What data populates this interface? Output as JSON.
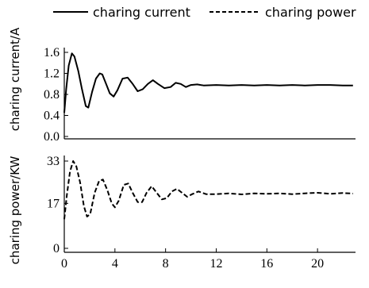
{
  "legend": {
    "current_label": "charing current",
    "power_label": "charing power"
  },
  "chart_data": [
    {
      "type": "line",
      "ylabel": "charing current/A",
      "ylim": [
        0,
        1.6
      ],
      "xlim": [
        0,
        23
      ],
      "yticks": [
        "0.0",
        "0.4",
        "0.8",
        "1.2",
        "1.6"
      ],
      "ytick_values": [
        0,
        0.4,
        0.8,
        1.2,
        1.6
      ],
      "series": [
        {
          "name": "charing current",
          "style": "solid",
          "x": [
            0,
            0.15,
            0.35,
            0.6,
            0.8,
            1.1,
            1.4,
            1.7,
            1.9,
            2.2,
            2.5,
            2.8,
            3.0,
            3.3,
            3.6,
            3.9,
            4.2,
            4.6,
            5.0,
            5.4,
            5.8,
            6.2,
            6.6,
            7.0,
            7.4,
            7.9,
            8.4,
            8.8,
            9.2,
            9.6,
            10.0,
            10.5,
            11.0,
            12,
            13,
            14,
            15,
            16,
            17,
            18,
            19,
            20,
            21,
            22,
            22.8
          ],
          "values": [
            0.45,
            0.9,
            1.35,
            1.58,
            1.52,
            1.25,
            0.9,
            0.58,
            0.55,
            0.85,
            1.1,
            1.2,
            1.18,
            1.0,
            0.82,
            0.76,
            0.88,
            1.1,
            1.12,
            1.0,
            0.86,
            0.9,
            1.0,
            1.07,
            1.0,
            0.92,
            0.94,
            1.02,
            1.0,
            0.94,
            0.98,
            0.99,
            0.97,
            0.98,
            0.97,
            0.98,
            0.97,
            0.98,
            0.97,
            0.98,
            0.97,
            0.98,
            0.98,
            0.97,
            0.97
          ]
        }
      ]
    },
    {
      "type": "line",
      "ylabel": "charing power/KW",
      "ylim": [
        0,
        33
      ],
      "xlim": [
        0,
        23
      ],
      "yticks": [
        "0",
        "17",
        "33"
      ],
      "ytick_values": [
        0,
        17,
        33
      ],
      "xticks": [
        "0",
        "4",
        "8",
        "12",
        "16",
        "20"
      ],
      "xtick_values": [
        0,
        4,
        8,
        12,
        16,
        20
      ],
      "series": [
        {
          "name": "charing power",
          "style": "dashed",
          "x": [
            0,
            0.2,
            0.45,
            0.7,
            0.95,
            1.25,
            1.55,
            1.8,
            2.05,
            2.4,
            2.75,
            3.05,
            3.4,
            3.75,
            4.0,
            4.3,
            4.7,
            5.05,
            5.4,
            5.8,
            6.15,
            6.5,
            6.9,
            7.3,
            7.7,
            8.1,
            8.5,
            8.9,
            9.3,
            9.7,
            10.1,
            10.6,
            11.2,
            12,
            13,
            14,
            15,
            16,
            17,
            18,
            19,
            20,
            21,
            22,
            22.8
          ],
          "values": [
            11,
            20,
            29,
            33,
            31,
            25,
            16,
            12,
            13,
            21,
            25.5,
            26,
            22,
            17,
            15.5,
            18,
            24,
            24.5,
            21,
            17.5,
            17.5,
            21,
            23.5,
            21,
            18.5,
            19,
            21.5,
            22.5,
            21,
            19.5,
            20.5,
            21.5,
            20.5,
            20.5,
            20.8,
            20.4,
            20.8,
            20.6,
            20.8,
            20.5,
            20.8,
            21.0,
            20.6,
            20.9,
            20.7
          ]
        }
      ]
    }
  ]
}
